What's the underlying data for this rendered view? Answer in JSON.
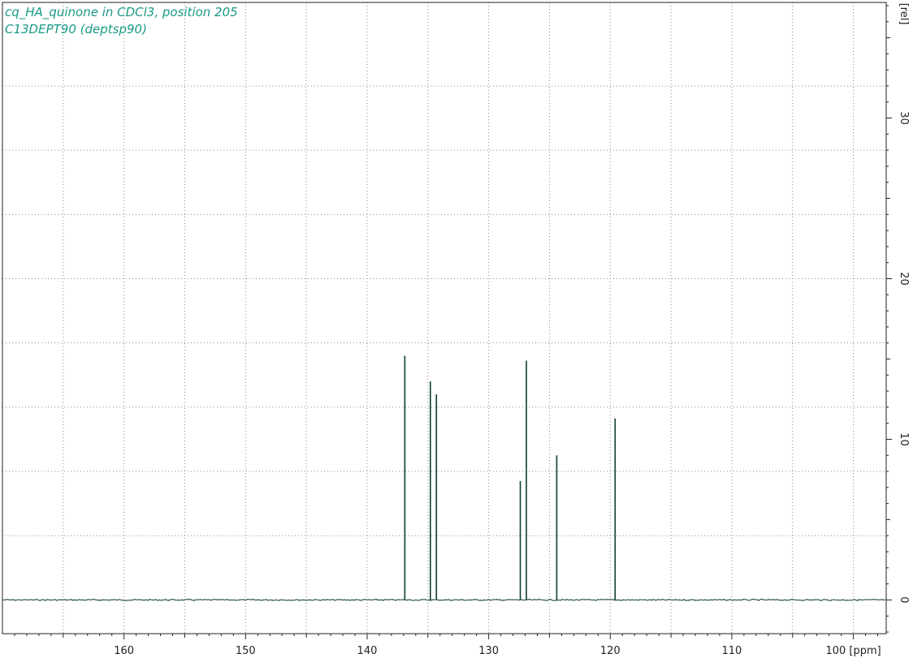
{
  "title_lines": [
    "cq_HA_quinone in CDCl3, position 205",
    "C13DEPT90 (deptsp90)"
  ],
  "colors": {
    "spectrum": "#0f3d33",
    "title": "#1a9a86",
    "grid": "#8a8a8a",
    "axis": "#222222"
  },
  "chart_data": {
    "type": "line",
    "title": "cq_HA_quinone in CDCl3, position 205",
    "subtitle": "C13DEPT90 (deptsp90)",
    "xlabel": "[ppm]",
    "ylabel": "[rel]",
    "x_reversed": true,
    "xlim": [
      170.0,
      97.3
    ],
    "ylim": [
      -2.1,
      37.2
    ],
    "x_ticks": [
      160,
      150,
      140,
      130,
      120,
      110,
      100
    ],
    "x_tick_labels": [
      "160",
      "150",
      "140",
      "130",
      "120",
      "110",
      "100 [ppm]"
    ],
    "y_ticks": [
      0,
      10,
      20,
      30
    ],
    "y_tick_labels": [
      "0",
      "10",
      "20",
      "30"
    ],
    "grid": true,
    "baseline": 0,
    "series": [
      {
        "peaks": [
          {
            "x": 136.9,
            "y": 15.2
          },
          {
            "x": 134.8,
            "y": 13.6
          },
          {
            "x": 134.3,
            "y": 12.8
          },
          {
            "x": 127.4,
            "y": 7.4
          },
          {
            "x": 126.9,
            "y": 14.9
          },
          {
            "x": 124.4,
            "y": 9.0
          },
          {
            "x": 119.6,
            "y": 11.3
          }
        ]
      }
    ]
  }
}
